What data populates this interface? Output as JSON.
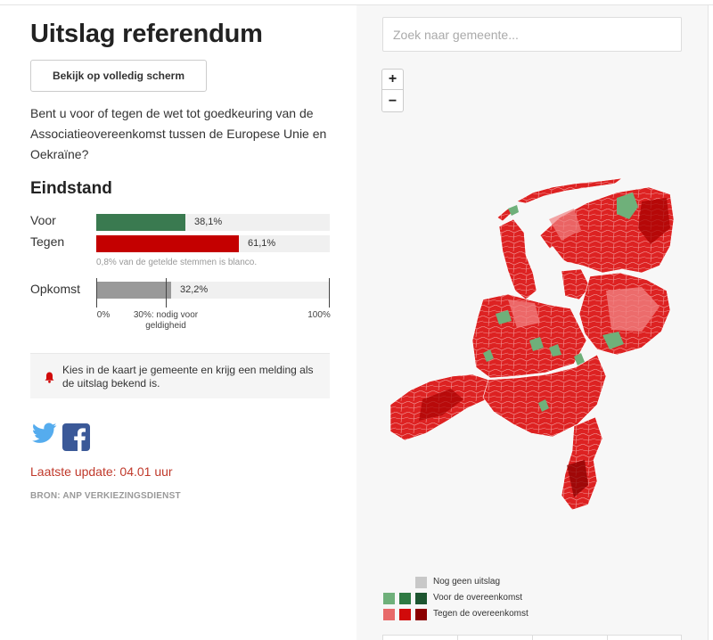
{
  "header": {
    "title": "Uitslag referendum",
    "fullscreen_label": "Bekijk op volledig scherm"
  },
  "question": "Bent u voor of tegen de wet tot goedkeuring van de Associatieovereenkomst tussen de Europese Unie en Oekraïne?",
  "results": {
    "heading": "Eindstand",
    "rows": [
      {
        "label": "Voor",
        "value_text": "38,1%",
        "percent": 38.1,
        "color": "#3a7a50"
      },
      {
        "label": "Tegen",
        "value_text": "61,1%",
        "percent": 61.1,
        "color": "#c40000"
      }
    ],
    "blank_note": "0,8% van de getelde stemmen is blanco."
  },
  "turnout": {
    "label": "Opkomst",
    "value_text": "32,2%",
    "percent": 32.2,
    "color": "#999999",
    "axis_min": "0%",
    "axis_threshold": "30%: nodig voor geldigheid",
    "axis_max": "100%"
  },
  "alert": {
    "text": "Kies in de kaart je gemeente en krijg een melding als de uitslag bekend is."
  },
  "social": {
    "twitter_icon": "twitter-icon",
    "facebook_icon": "facebook-icon"
  },
  "update": "Laatste update: 04.01 uur",
  "source": "BRON: ANP VERKIEZINGSDIENST",
  "map": {
    "search_placeholder": "Zoek naar gemeente...",
    "zoom_in": "+",
    "zoom_out": "−",
    "legend": {
      "no_result": "Nog geen uitslag",
      "voor": "Voor de overeenkomst",
      "tegen": "Tegen de overeenkomst",
      "no_result_color": "#c8c8c8",
      "voor_colors": [
        "#6fb07a",
        "#2f7a43",
        "#1d5530"
      ],
      "tegen_colors": [
        "#e86a6a",
        "#d10a0a",
        "#8b0000"
      ]
    }
  }
}
